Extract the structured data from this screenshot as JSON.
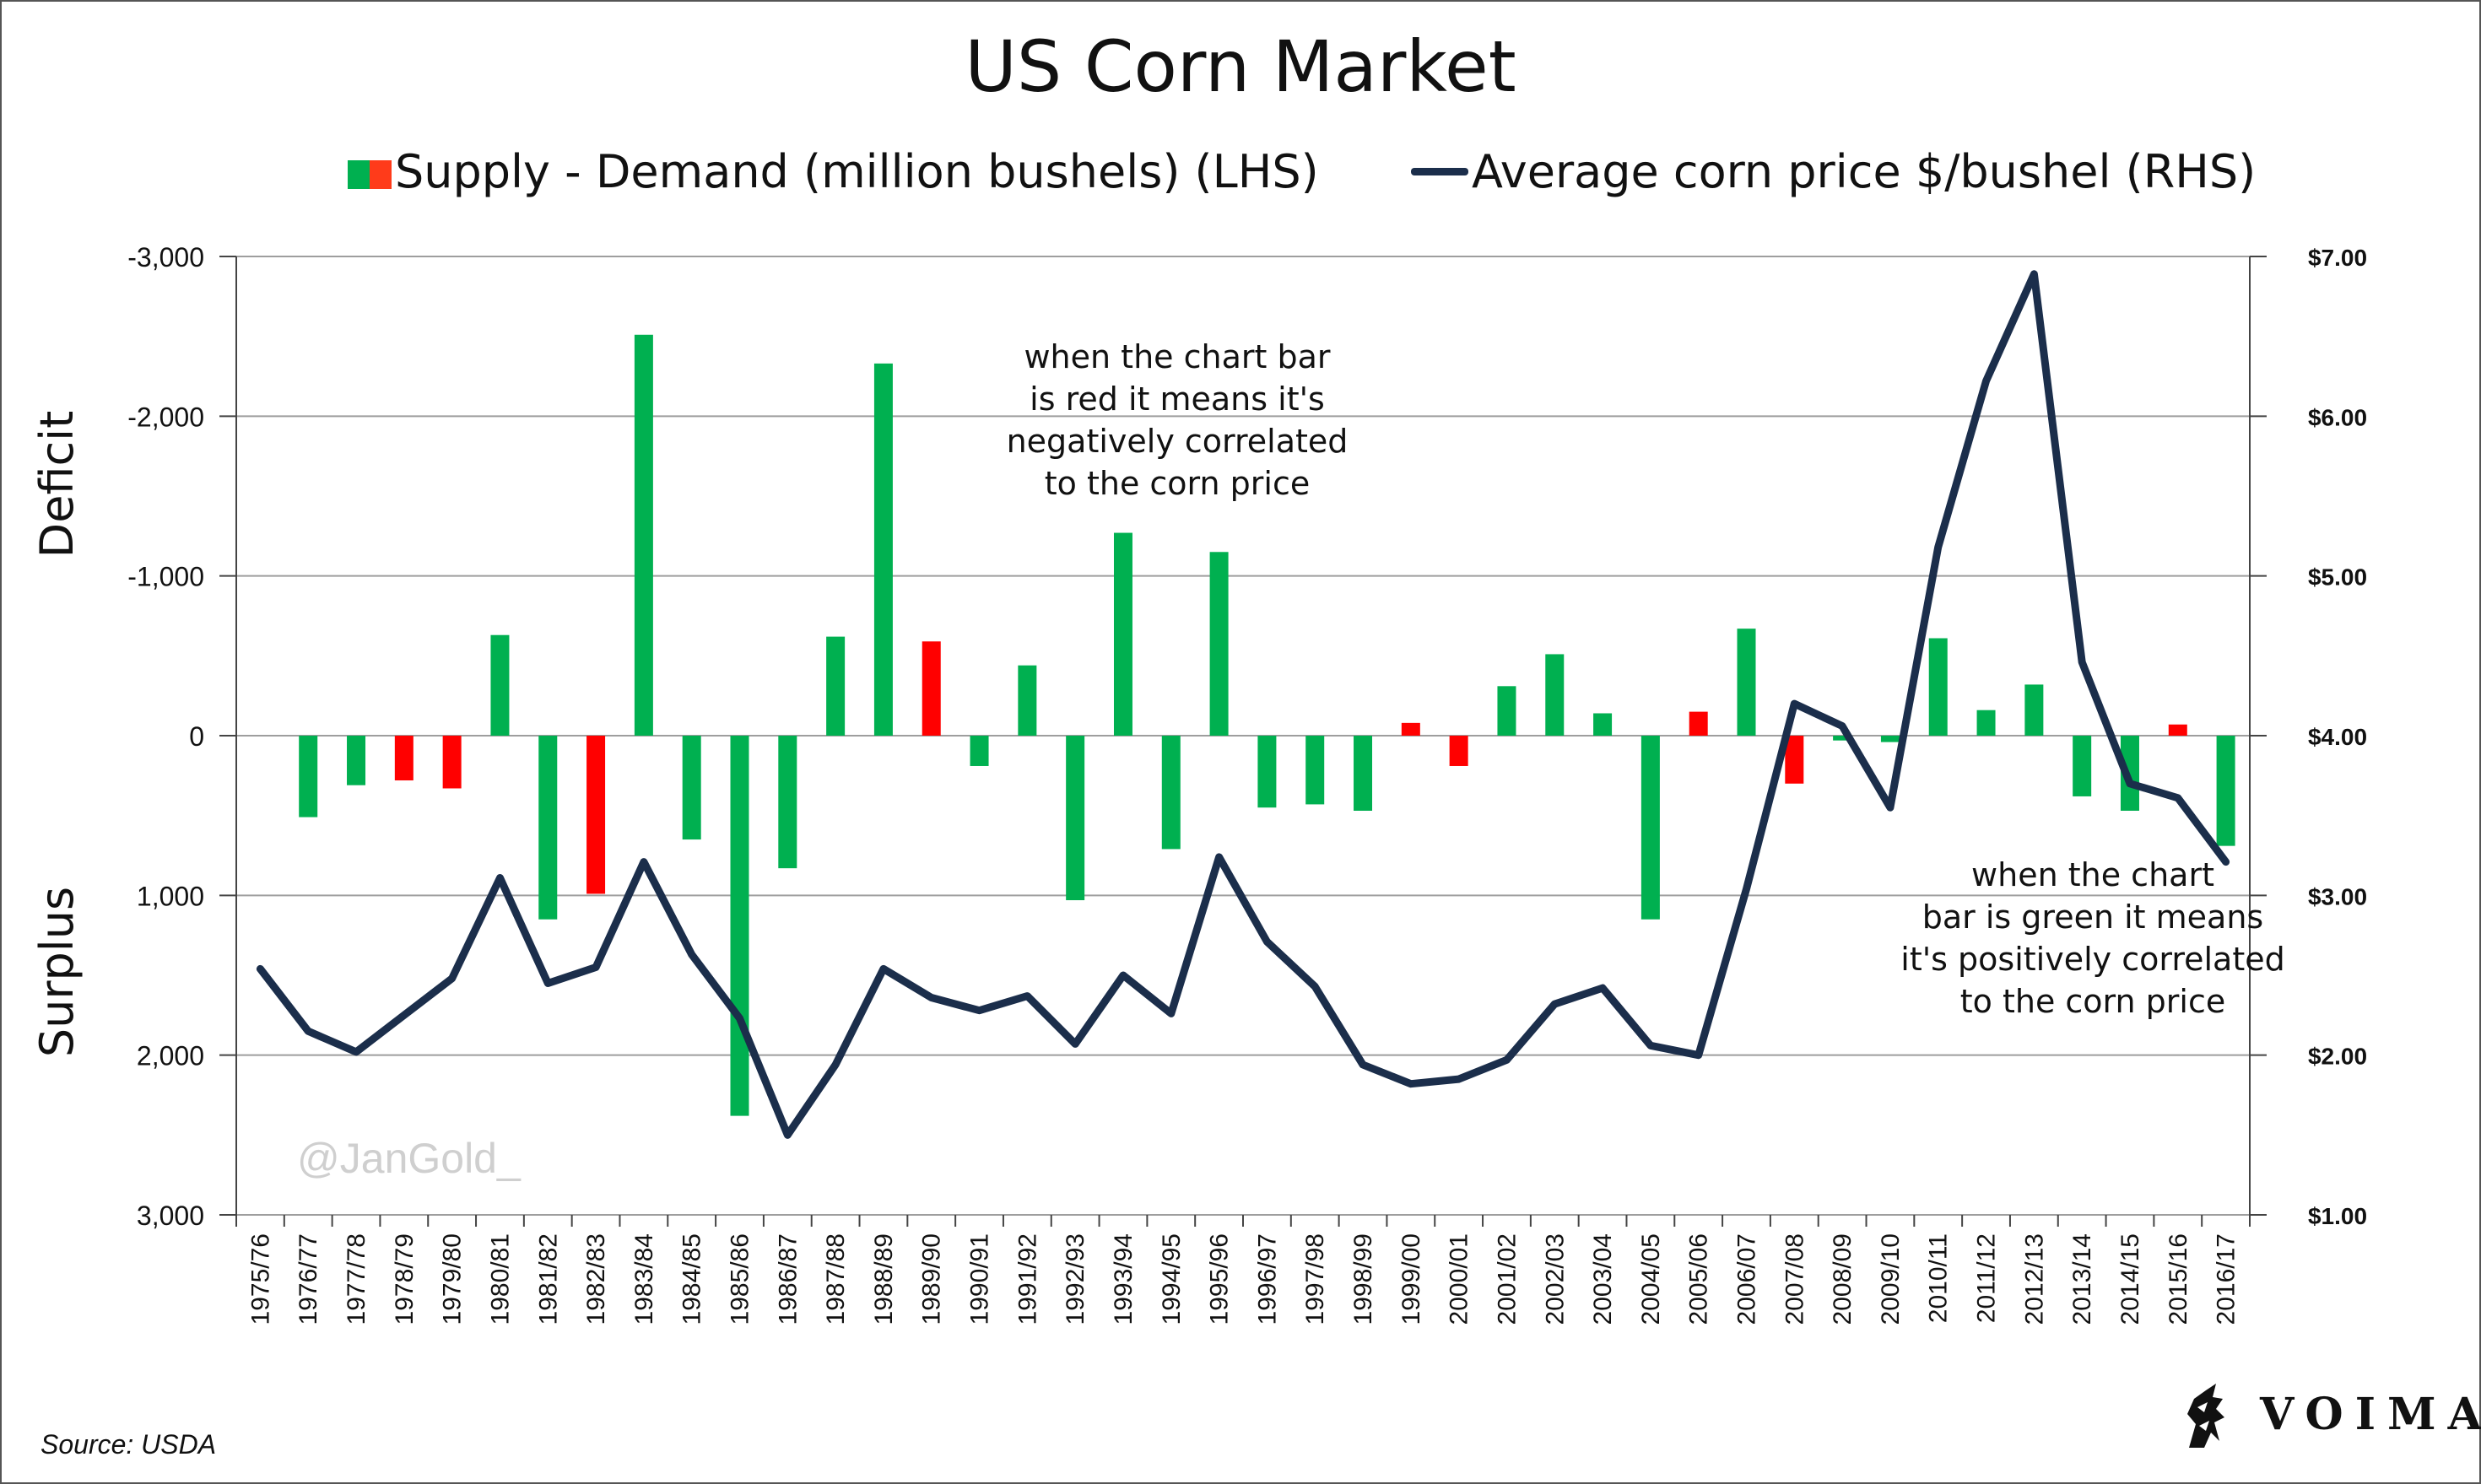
{
  "chart_data": {
    "type": "bar",
    "title": "US Corn Market",
    "categories": [
      "1975/76",
      "1976/77",
      "1977/78",
      "1978/79",
      "1979/80",
      "1980/81",
      "1981/82",
      "1982/83",
      "1983/84",
      "1984/85",
      "1985/86",
      "1986/87",
      "1987/88",
      "1988/89",
      "1989/90",
      "1990/91",
      "1991/92",
      "1992/93",
      "1993/94",
      "1994/95",
      "1995/96",
      "1996/97",
      "1997/98",
      "1998/99",
      "1999/00",
      "2000/01",
      "2001/02",
      "2002/03",
      "2003/04",
      "2004/05",
      "2005/06",
      "2006/07",
      "2007/08",
      "2008/09",
      "2009/10",
      "2010/11",
      "2011/12",
      "2012/13",
      "2013/14",
      "2014/15",
      "2015/16",
      "2016/17"
    ],
    "series": [
      {
        "name": "Supply - Demand (million bushels) (LHS)",
        "axis": "left",
        "values": [
          null,
          510,
          310,
          280,
          330,
          -630,
          1150,
          990,
          -2510,
          650,
          2380,
          830,
          -620,
          -2330,
          -590,
          190,
          -440,
          1030,
          -1270,
          710,
          -1150,
          450,
          430,
          470,
          -80,
          190,
          -310,
          -510,
          -140,
          1150,
          -150,
          -670,
          300,
          30,
          40,
          -610,
          -160,
          -320,
          380,
          470,
          -70,
          690
        ],
        "colors": [
          "green",
          "green",
          "green",
          "red",
          "red",
          "green",
          "green",
          "red",
          "green",
          "green",
          "green",
          "green",
          "green",
          "green",
          "red",
          "green",
          "green",
          "green",
          "green",
          "green",
          "green",
          "green",
          "green",
          "green",
          "red",
          "red",
          "green",
          "green",
          "green",
          "green",
          "red",
          "green",
          "red",
          "green",
          "green",
          "green",
          "green",
          "green",
          "green",
          "green",
          "red",
          "green"
        ]
      },
      {
        "name": "Average corn price $/bushel (RHS)",
        "axis": "right",
        "values": [
          2.54,
          2.15,
          2.02,
          2.25,
          2.48,
          3.11,
          2.45,
          2.55,
          3.21,
          2.63,
          2.23,
          1.5,
          1.94,
          2.54,
          2.36,
          2.28,
          2.37,
          2.07,
          2.5,
          2.26,
          3.24,
          2.71,
          2.43,
          1.94,
          1.82,
          1.85,
          1.97,
          2.32,
          2.42,
          2.06,
          2.0,
          3.04,
          4.2,
          4.06,
          3.55,
          5.18,
          6.22,
          6.89,
          4.46,
          3.7,
          3.61,
          3.21
        ]
      }
    ],
    "y_left": {
      "ticks": [
        "-3,000",
        "-2,000",
        "-1,000",
        "0",
        "1,000",
        "2,000",
        "3,000"
      ],
      "range": [
        -3000,
        3000
      ],
      "inverted": true
    },
    "y_right": {
      "ticks": [
        "$7.00",
        "$6.00",
        "$5.00",
        "$4.00",
        "$3.00",
        "$2.00",
        "$1.00"
      ],
      "range": [
        1,
        7
      ]
    },
    "ylabel_upper": "Deficit",
    "ylabel_lower": "Surplus",
    "grid": true,
    "legend": "top",
    "annotations": [
      "when the chart bar\nis red it means it's\nnegatively correlated\nto the corn price",
      "when the chart\nbar is green it means\nit's positively correlated\nto the corn price"
    ]
  },
  "colors": {
    "green": "#00b050",
    "red": "#ff0000",
    "line": "#1b2e4b",
    "grid": "#9e9e9e"
  },
  "watermark": "@JanGold_",
  "source": "Source: USDA",
  "logo": {
    "text": "VOIMA",
    "icon": "griffin-icon"
  }
}
